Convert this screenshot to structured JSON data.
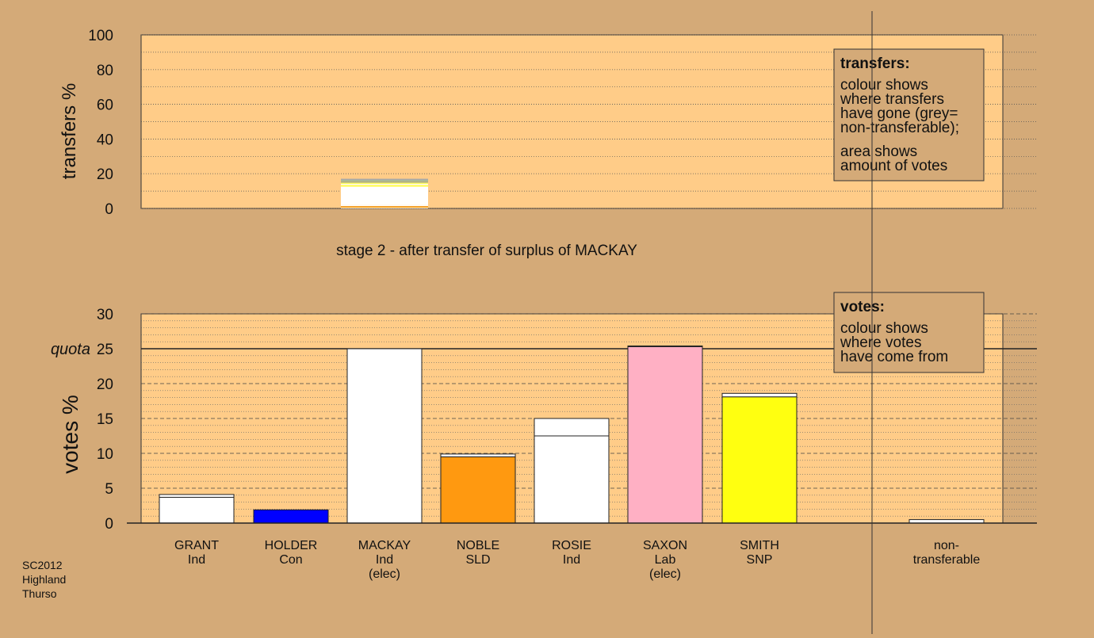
{
  "chart_data": [
    {
      "type": "bar",
      "stacked": true,
      "ylabel": "transfers %",
      "ylim": [
        0,
        100
      ],
      "yticks": [
        0,
        20,
        40,
        60,
        80,
        100
      ],
      "caption": "stage 2 - after transfer of surplus of MACKAY",
      "columns": [
        "GRANT",
        "HOLDER",
        "MACKAY",
        "NOBLE",
        "ROSIE",
        "SAXON",
        "SMITH",
        "non-transferable"
      ],
      "source_column": "MACKAY",
      "segments": [
        {
          "to": "non-transferable",
          "value": 0.4,
          "color": "#ffffff"
        },
        {
          "to": "NOBLE",
          "value": 0.4,
          "color": "#ff9900"
        },
        {
          "to": "NOBLE",
          "value": 0.6,
          "color": "#f0a030"
        },
        {
          "to": "GRANT",
          "value": 0.5,
          "color": "#ffffff"
        },
        {
          "to": "ROSIE",
          "value": 10.8,
          "color": "#ffffff"
        },
        {
          "to": "SMITH",
          "value": 0.6,
          "color": "#ffff00"
        },
        {
          "to": "HOLDER",
          "value": 0.7,
          "color": "#ffffff"
        },
        {
          "to": "SAXON",
          "value": 0.8,
          "color": "#ffff66"
        },
        {
          "to": "other",
          "value": 1.0,
          "color": "#b0b080"
        },
        {
          "to": "other",
          "value": 0.6,
          "color": "#a0b8a0"
        },
        {
          "to": "other",
          "value": 0.7,
          "color": "#a8a8a8"
        }
      ],
      "legend": {
        "title": "transfers:",
        "lines1": [
          "colour shows",
          "where transfers",
          "have gone (grey=",
          "non-transferable);"
        ],
        "lines2": [
          "area shows",
          "amount of votes"
        ]
      }
    },
    {
      "type": "bar",
      "stacked": true,
      "ylabel": "votes %",
      "ylim": [
        0,
        30
      ],
      "yticks": [
        0,
        5,
        10,
        15,
        20,
        25,
        30
      ],
      "quota": 25,
      "quota_label": "quota",
      "categories": [
        {
          "name": "GRANT",
          "party": "Ind",
          "status": "",
          "first": 3.7,
          "first_color": "#ffffff",
          "transfer": 0.4,
          "total": 4.1
        },
        {
          "name": "HOLDER",
          "party": "Con",
          "status": "",
          "first": 1.9,
          "first_color": "#0000ff",
          "transfer": 0.0,
          "total": 1.9
        },
        {
          "name": "MACKAY",
          "party": "Ind",
          "status": "(elec)",
          "first": 25.0,
          "first_color": "#ffffff",
          "transfer": 0.0,
          "total": 25.0
        },
        {
          "name": "NOBLE",
          "party": "SLD",
          "status": "",
          "first": 9.5,
          "first_color": "#ff9910",
          "transfer": 0.4,
          "total": 9.9
        },
        {
          "name": "ROSIE",
          "party": "Ind",
          "status": "",
          "first": 12.5,
          "first_color": "#ffffff",
          "transfer": 2.5,
          "total": 15.0
        },
        {
          "name": "SAXON",
          "party": "Lab",
          "status": "(elec)",
          "first": 25.3,
          "first_color": "#ffb0c4",
          "transfer": 0.1,
          "total": 25.4
        },
        {
          "name": "SMITH",
          "party": "SNP",
          "status": "",
          "first": 18.1,
          "first_color": "#ffff10",
          "transfer": 0.5,
          "total": 18.6
        }
      ],
      "nontransferable": {
        "label": [
          "non-",
          "transferable"
        ],
        "value": 0.5
      },
      "legend": {
        "title": "votes:",
        "lines": [
          "colour shows",
          "where votes",
          "have come from"
        ]
      }
    }
  ],
  "footer": [
    "SC2012",
    "Highland",
    "Thurso"
  ],
  "colors": {
    "background": "#d4aa78",
    "plot_fill": "#ffcc88",
    "legend_fill": "#d4aa78",
    "axis": "#222222"
  }
}
